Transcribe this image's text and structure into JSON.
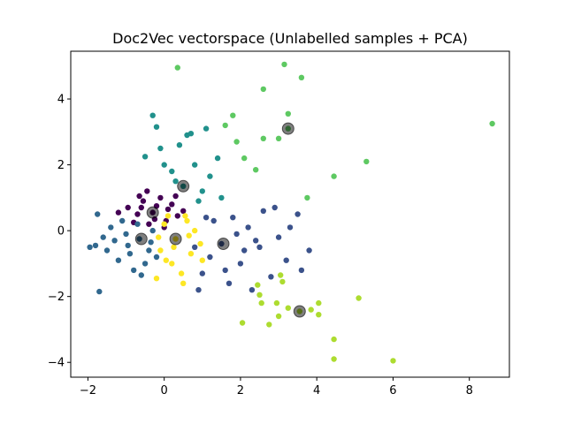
{
  "chart_data": {
    "type": "scatter",
    "title": "Doc2Vec vectorspace (Unlabelled samples + PCA)",
    "xlabel": "",
    "ylabel": "",
    "xlim": [
      -2.45,
      9.05
    ],
    "ylim": [
      -4.45,
      5.45
    ],
    "xticks": [
      -2,
      0,
      2,
      4,
      6,
      8
    ],
    "yticks": [
      -4,
      -2,
      0,
      2,
      4
    ],
    "xtick_labels": [
      "−2",
      "0",
      "2",
      "4",
      "6",
      "8"
    ],
    "ytick_labels": [
      "−4",
      "−2",
      "0",
      "2",
      "4"
    ],
    "grid": false,
    "series": [
      {
        "color": "#440154",
        "points": [
          [
            -0.3,
            0.55
          ],
          [
            -0.55,
            0.9
          ],
          [
            -0.1,
            1.0
          ],
          [
            0.2,
            0.8
          ],
          [
            -0.7,
            0.5
          ],
          [
            -0.4,
            0.2
          ],
          [
            0.05,
            0.3
          ],
          [
            0.35,
            0.45
          ],
          [
            -0.8,
            0.25
          ],
          [
            -0.2,
            0.75
          ],
          [
            -0.65,
            1.05
          ],
          [
            0.3,
            1.05
          ],
          [
            -0.95,
            0.7
          ],
          [
            0.5,
            0.6
          ],
          [
            -0.45,
            1.2
          ],
          [
            0.0,
            0.1
          ],
          [
            -1.2,
            0.55
          ],
          [
            -0.25,
            0.35
          ],
          [
            0.1,
            0.65
          ],
          [
            -0.6,
            0.7
          ]
        ]
      },
      {
        "color": "#3b528b",
        "points": [
          [
            1.5,
            -0.4
          ],
          [
            1.2,
            -0.8
          ],
          [
            2.2,
            0.1
          ],
          [
            2.5,
            -0.5
          ],
          [
            1.8,
            0.4
          ],
          [
            3.0,
            -0.2
          ],
          [
            2.0,
            -1.0
          ],
          [
            3.5,
            0.5
          ],
          [
            1.0,
            -1.3
          ],
          [
            2.8,
            -1.4
          ],
          [
            3.2,
            -0.9
          ],
          [
            1.7,
            -1.6
          ],
          [
            2.3,
            -1.8
          ],
          [
            3.8,
            -0.6
          ],
          [
            1.3,
            0.3
          ],
          [
            2.6,
            0.6
          ],
          [
            0.9,
            -1.8
          ],
          [
            1.9,
            -0.1
          ],
          [
            3.3,
            0.1
          ],
          [
            2.1,
            -0.6
          ],
          [
            1.1,
            0.4
          ],
          [
            2.9,
            0.7
          ],
          [
            1.6,
            -1.2
          ],
          [
            3.6,
            -1.2
          ],
          [
            0.8,
            -0.5
          ],
          [
            2.4,
            -0.3
          ]
        ]
      },
      {
        "color": "#31688e",
        "points": [
          [
            -0.65,
            -0.25
          ],
          [
            -1.0,
            -0.1
          ],
          [
            -0.4,
            -0.6
          ],
          [
            -0.9,
            -0.7
          ],
          [
            -1.3,
            -0.3
          ],
          [
            -0.3,
            0.0
          ],
          [
            -0.7,
            0.2
          ],
          [
            -1.5,
            -0.6
          ],
          [
            -0.5,
            -1.0
          ],
          [
            -1.1,
            0.3
          ],
          [
            -1.8,
            -0.45
          ],
          [
            -0.2,
            -0.8
          ],
          [
            -1.4,
            0.1
          ],
          [
            -0.8,
            -1.2
          ],
          [
            -1.95,
            -0.5
          ],
          [
            -1.75,
            0.5
          ],
          [
            -1.7,
            -1.85
          ],
          [
            -0.6,
            -1.35
          ],
          [
            -1.2,
            -0.9
          ],
          [
            -0.35,
            -0.35
          ],
          [
            -1.6,
            -0.2
          ],
          [
            -0.95,
            -0.45
          ]
        ]
      },
      {
        "color": "#21918c",
        "points": [
          [
            0.5,
            1.35
          ],
          [
            0.2,
            1.8
          ],
          [
            0.8,
            2.0
          ],
          [
            -0.1,
            2.5
          ],
          [
            1.0,
            1.2
          ],
          [
            0.6,
            2.9
          ],
          [
            -0.3,
            3.5
          ],
          [
            1.4,
            2.2
          ],
          [
            -0.2,
            3.15
          ],
          [
            0.0,
            2.0
          ],
          [
            1.2,
            1.65
          ],
          [
            -0.5,
            2.25
          ],
          [
            0.4,
            2.6
          ],
          [
            1.1,
            3.1
          ],
          [
            0.3,
            1.5
          ],
          [
            0.9,
            0.9
          ],
          [
            1.5,
            1.0
          ],
          [
            0.7,
            2.95
          ]
        ]
      },
      {
        "color": "#5ec962",
        "points": [
          [
            3.25,
            3.1
          ],
          [
            0.35,
            4.95
          ],
          [
            3.15,
            5.05
          ],
          [
            3.6,
            4.65
          ],
          [
            2.6,
            4.3
          ],
          [
            3.25,
            3.55
          ],
          [
            1.6,
            3.2
          ],
          [
            1.8,
            3.5
          ],
          [
            2.6,
            2.8
          ],
          [
            3.0,
            2.8
          ],
          [
            2.1,
            2.2
          ],
          [
            2.4,
            1.85
          ],
          [
            4.45,
            1.65
          ],
          [
            5.3,
            2.1
          ],
          [
            3.75,
            1.0
          ],
          [
            8.6,
            3.25
          ],
          [
            1.9,
            2.7
          ]
        ]
      },
      {
        "color": "#addc30",
        "points": [
          [
            3.55,
            -2.45
          ],
          [
            2.45,
            -1.65
          ],
          [
            2.5,
            -1.95
          ],
          [
            2.55,
            -2.2
          ],
          [
            2.05,
            -2.8
          ],
          [
            2.75,
            -2.85
          ],
          [
            3.05,
            -1.35
          ],
          [
            3.1,
            -1.55
          ],
          [
            2.95,
            -2.2
          ],
          [
            3.0,
            -2.6
          ],
          [
            3.25,
            -2.35
          ],
          [
            3.85,
            -2.4
          ],
          [
            4.05,
            -2.2
          ],
          [
            4.05,
            -2.55
          ],
          [
            4.45,
            -3.3
          ],
          [
            4.45,
            -3.9
          ],
          [
            5.1,
            -2.05
          ],
          [
            6.0,
            -3.95
          ]
        ]
      },
      {
        "color": "#fde725",
        "points": [
          [
            0.3,
            -0.25
          ],
          [
            0.0,
            0.2
          ],
          [
            0.6,
            0.3
          ],
          [
            -0.1,
            -0.6
          ],
          [
            0.7,
            -0.7
          ],
          [
            0.2,
            -1.0
          ],
          [
            0.8,
            0.0
          ],
          [
            -0.15,
            -0.2
          ],
          [
            0.45,
            -1.3
          ],
          [
            0.95,
            -0.4
          ],
          [
            0.1,
            0.45
          ],
          [
            0.55,
            0.45
          ],
          [
            -0.2,
            -1.45
          ],
          [
            0.5,
            -1.6
          ],
          [
            1.0,
            -0.9
          ],
          [
            0.25,
            -0.5
          ],
          [
            0.65,
            -0.15
          ],
          [
            0.05,
            -0.9
          ]
        ]
      }
    ],
    "centroids": [
      [
        -0.3,
        0.55
      ],
      [
        1.55,
        -0.4
      ],
      [
        -0.6,
        -0.25
      ],
      [
        0.5,
        1.35
      ],
      [
        3.25,
        3.1
      ],
      [
        3.55,
        -2.45
      ],
      [
        0.3,
        -0.25
      ]
    ],
    "centroid_color": "#000000"
  }
}
